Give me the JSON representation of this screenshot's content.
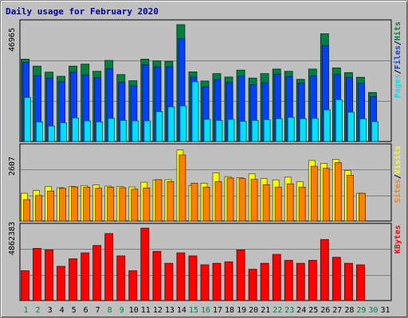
{
  "title": "Daily usage for February 2020",
  "colors": {
    "background": "#c0c0c0",
    "panel": "#c0c0c0",
    "hits": "#008040",
    "files": "#0040ff",
    "pages": "#00e0ff",
    "visits": "#ffff00",
    "sites": "#ff8000",
    "kbytes": "#ff0000",
    "title": "#0000a0",
    "weekend_label": "#008040",
    "weekday_label": "#000000"
  },
  "chart_data": [
    {
      "type": "bar",
      "name": "hits-files-pages",
      "ymax_label": "46965",
      "ylim": [
        0,
        46965
      ],
      "legend": [
        "Pages",
        "/",
        "Files",
        "/",
        "Hits"
      ],
      "categories": [
        "1",
        "2",
        "3",
        "4",
        "5",
        "6",
        "7",
        "8",
        "9",
        "10",
        "11",
        "12",
        "13",
        "14",
        "15",
        "16",
        "17",
        "18",
        "19",
        "20",
        "21",
        "22",
        "23",
        "24",
        "25",
        "26",
        "27",
        "28",
        "29",
        "30",
        "31"
      ],
      "series": [
        {
          "name": "Hits",
          "values": [
            33100,
            30300,
            27900,
            26200,
            30300,
            31100,
            28200,
            32600,
            26900,
            24400,
            33100,
            32400,
            32200,
            46965,
            28000,
            24300,
            27300,
            25900,
            28700,
            25500,
            27300,
            29100,
            28200,
            25000,
            29100,
            43300,
            29600,
            27700,
            25800,
            19700,
            0
          ]
        },
        {
          "name": "Files",
          "values": [
            31800,
            26500,
            25500,
            24000,
            27900,
            26700,
            25600,
            29300,
            23800,
            22400,
            30900,
            30000,
            30000,
            41200,
            25800,
            21900,
            24900,
            23700,
            26300,
            22800,
            23600,
            27000,
            26100,
            23500,
            26300,
            38600,
            26900,
            25700,
            23400,
            18000,
            0
          ]
        },
        {
          "name": "Pages",
          "values": [
            17700,
            7900,
            6200,
            7500,
            9500,
            8300,
            7900,
            9300,
            8500,
            8300,
            8300,
            12000,
            13900,
            14300,
            24000,
            8900,
            8500,
            8900,
            8100,
            8500,
            8800,
            9200,
            9700,
            9200,
            9300,
            12700,
            16800,
            11800,
            9100,
            8000,
            0
          ]
        }
      ]
    },
    {
      "type": "bar",
      "name": "visits-sites",
      "ymax_label": "2607",
      "ylim": [
        0,
        2607
      ],
      "legend": [
        "Sites",
        "/",
        "Visits"
      ],
      "categories": [
        "1",
        "2",
        "3",
        "4",
        "5",
        "6",
        "7",
        "8",
        "9",
        "10",
        "11",
        "12",
        "13",
        "14",
        "15",
        "16",
        "17",
        "18",
        "19",
        "20",
        "21",
        "22",
        "23",
        "24",
        "25",
        "26",
        "27",
        "28",
        "29",
        "30",
        "31"
      ],
      "series": [
        {
          "name": "Visits",
          "values": [
            1000,
            1100,
            1240,
            1200,
            1250,
            1280,
            1300,
            1260,
            1250,
            1230,
            1400,
            1480,
            1490,
            2560,
            1280,
            1360,
            1740,
            1600,
            1560,
            1700,
            1530,
            1480,
            1580,
            1420,
            2180,
            2080,
            2220,
            1820,
            1000,
            0,
            0
          ]
        },
        {
          "name": "Sites",
          "values": [
            770,
            920,
            1080,
            1180,
            1230,
            1220,
            1180,
            1220,
            1200,
            1150,
            1190,
            1490,
            1420,
            2380,
            1360,
            1220,
            1420,
            1550,
            1530,
            1500,
            1310,
            1220,
            1340,
            1220,
            1970,
            1900,
            2100,
            1650,
            1000,
            0,
            0
          ]
        }
      ]
    },
    {
      "type": "bar",
      "name": "kbytes",
      "ymax_label": "4862383",
      "ylim": [
        0,
        4862383
      ],
      "legend": [
        "KBytes"
      ],
      "categories": [
        "1",
        "2",
        "3",
        "4",
        "5",
        "6",
        "7",
        "8",
        "9",
        "10",
        "11",
        "12",
        "13",
        "14",
        "15",
        "16",
        "17",
        "18",
        "19",
        "20",
        "21",
        "22",
        "23",
        "24",
        "25",
        "26",
        "27",
        "28",
        "29",
        "30",
        "31"
      ],
      "series": [
        {
          "name": "KBytes",
          "values": [
            2000000,
            3500000,
            3400000,
            2300000,
            2800000,
            3200000,
            3700000,
            4500000,
            3000000,
            2000000,
            4862383,
            3300000,
            2500000,
            3200000,
            3000000,
            2400000,
            2500000,
            2600000,
            3400000,
            2100000,
            2500000,
            3100000,
            2700000,
            2500000,
            2700000,
            4100000,
            2900000,
            2500000,
            2400000,
            0,
            0
          ]
        }
      ]
    }
  ],
  "x_labels": {
    "days": [
      "1",
      "2",
      "3",
      "4",
      "5",
      "6",
      "7",
      "8",
      "9",
      "10",
      "11",
      "12",
      "13",
      "14",
      "15",
      "16",
      "17",
      "18",
      "19",
      "20",
      "21",
      "22",
      "23",
      "24",
      "25",
      "26",
      "27",
      "28",
      "29",
      "30",
      "31"
    ],
    "weekend_days": [
      1,
      2,
      8,
      9,
      15,
      16,
      22,
      23,
      29,
      30
    ]
  }
}
